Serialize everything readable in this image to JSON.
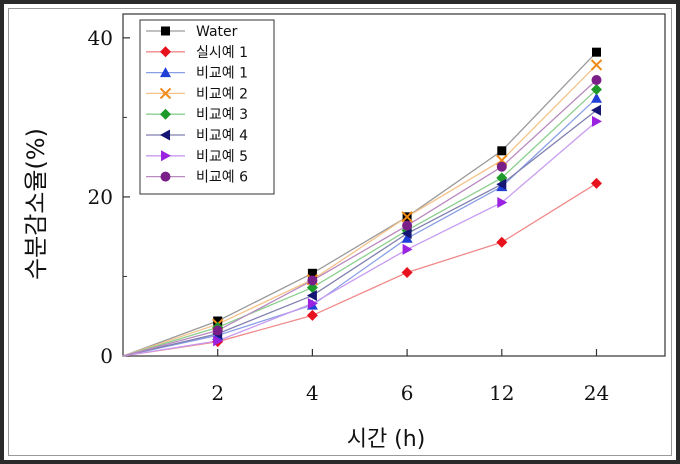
{
  "chart_data": {
    "type": "line",
    "title": "",
    "xlabel": "시간 (h)",
    "ylabel": "수분감소율(%)",
    "categories": [
      "0",
      "2",
      "4",
      "6",
      "12",
      "24"
    ],
    "x_tick_labels": [
      "2",
      "4",
      "6",
      "12",
      "24"
    ],
    "y_tick_labels": [
      "0",
      "20",
      "40"
    ],
    "ylim": [
      0,
      43
    ],
    "grid": false,
    "legend_position": "top-left",
    "series": [
      {
        "name": "Water",
        "color": "#000000",
        "line_color": "#9a9a9a",
        "marker": "square",
        "values": [
          0,
          4.4,
          10.4,
          17.5,
          25.8,
          38.2
        ]
      },
      {
        "name": "실시예 1",
        "color": "#e8121e",
        "line_color": "#f08a8a",
        "marker": "diamond",
        "values": [
          0,
          1.8,
          5.1,
          10.5,
          14.3,
          21.7
        ]
      },
      {
        "name": "비교예 1",
        "color": "#1f3fd6",
        "line_color": "#8aa0e6",
        "marker": "triangle-up",
        "values": [
          0,
          2.6,
          6.4,
          14.8,
          21.3,
          32.4
        ]
      },
      {
        "name": "비교예 2",
        "color": "#f08a16",
        "line_color": "#f5c28a",
        "marker": "x",
        "values": [
          0,
          4.0,
          9.6,
          17.5,
          24.6,
          36.6
        ]
      },
      {
        "name": "비교예 3",
        "color": "#1e9a2a",
        "line_color": "#8ccf8f",
        "marker": "diamond",
        "values": [
          0,
          3.6,
          8.6,
          15.8,
          22.4,
          33.5
        ]
      },
      {
        "name": "비교예 4",
        "color": "#151573",
        "line_color": "#8080b0",
        "marker": "triangle-left",
        "values": [
          0,
          2.8,
          7.6,
          15.4,
          21.6,
          30.9
        ]
      },
      {
        "name": "비교예 5",
        "color": "#9a22e0",
        "line_color": "#c79af0",
        "marker": "triangle-right",
        "values": [
          0,
          1.9,
          6.6,
          13.4,
          19.3,
          29.5
        ]
      },
      {
        "name": "비교예 6",
        "color": "#7a1f8a",
        "line_color": "#b98ac0",
        "marker": "circle",
        "values": [
          0,
          3.2,
          9.5,
          16.4,
          23.8,
          34.7
        ]
      }
    ]
  }
}
